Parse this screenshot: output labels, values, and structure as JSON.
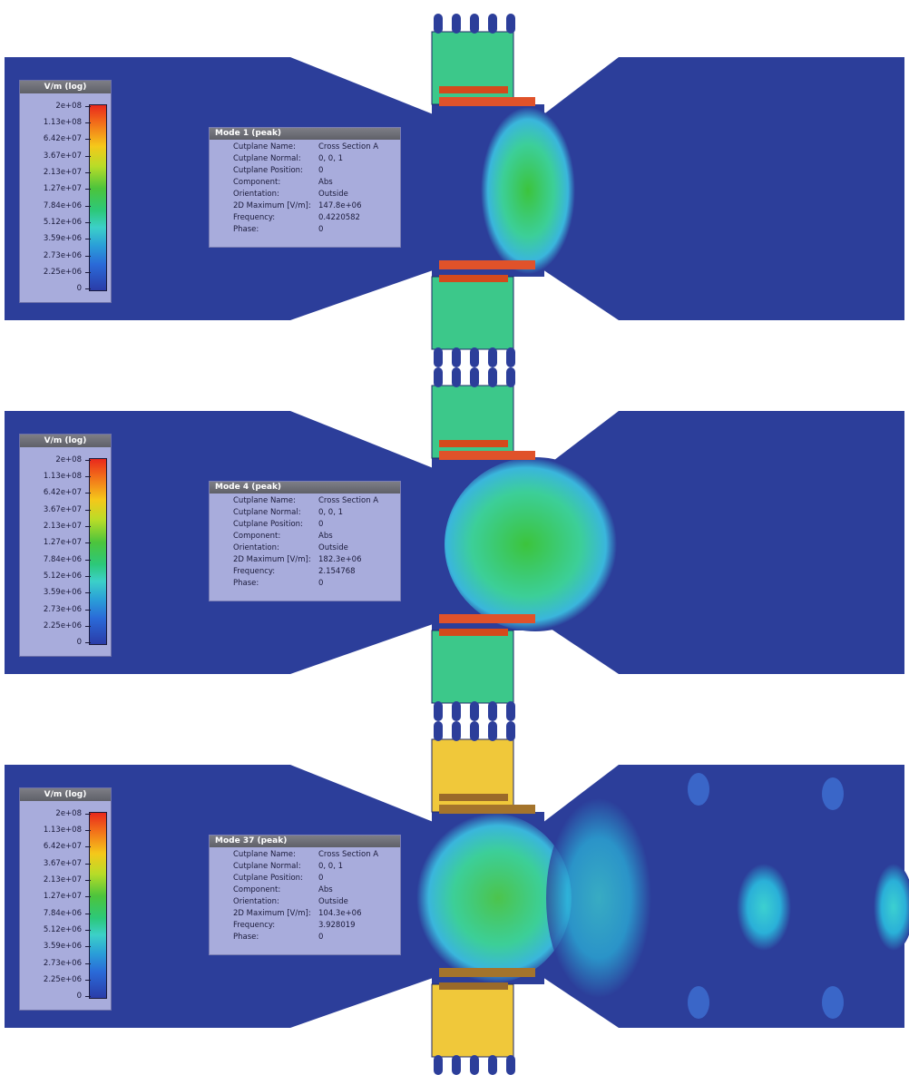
{
  "legend": {
    "title": "V/m (log)",
    "ticks": [
      "2e+08",
      "1.13e+08",
      "6.42e+07",
      "3.67e+07",
      "2.13e+07",
      "1.27e+07",
      "7.84e+06",
      "5.12e+06",
      "3.59e+06",
      "2.73e+06",
      "2.25e+06",
      "0"
    ],
    "colors": [
      "#e8281c",
      "#f26a1a",
      "#f5c81a",
      "#b8dc28",
      "#4cc43c",
      "#2cc87a",
      "#3cd0c8",
      "#2a9ed8",
      "#2a6ad8",
      "#2a3ca8"
    ]
  },
  "info_labels": [
    "Cutplane Name:",
    "Cutplane Normal:",
    "Cutplane Position:",
    "Component:",
    "Orientation:",
    "2D Maximum [V/m]:",
    "Frequency:",
    "Phase:"
  ],
  "panels": [
    {
      "title": "Mode 1 (peak)",
      "values": [
        "Cross Section A",
        "0, 0, 1",
        "0",
        "Abs",
        "Outside",
        "147.8e+06",
        "0.4220582",
        "0"
      ],
      "field_color": "#2c3e9a"
    },
    {
      "title": "Mode 4 (peak)",
      "values": [
        "Cross Section A",
        "0, 0, 1",
        "0",
        "Abs",
        "Outside",
        "182.3e+06",
        "2.154768",
        "0"
      ],
      "field_color": "#2c3e9a"
    },
    {
      "title": "Mode 37 (peak)",
      "values": [
        "Cross Section A",
        "0, 0, 1",
        "0",
        "Abs",
        "Outside",
        "104.3e+06",
        "3.928019",
        "0"
      ],
      "field_color": "#2c3e9a"
    }
  ]
}
